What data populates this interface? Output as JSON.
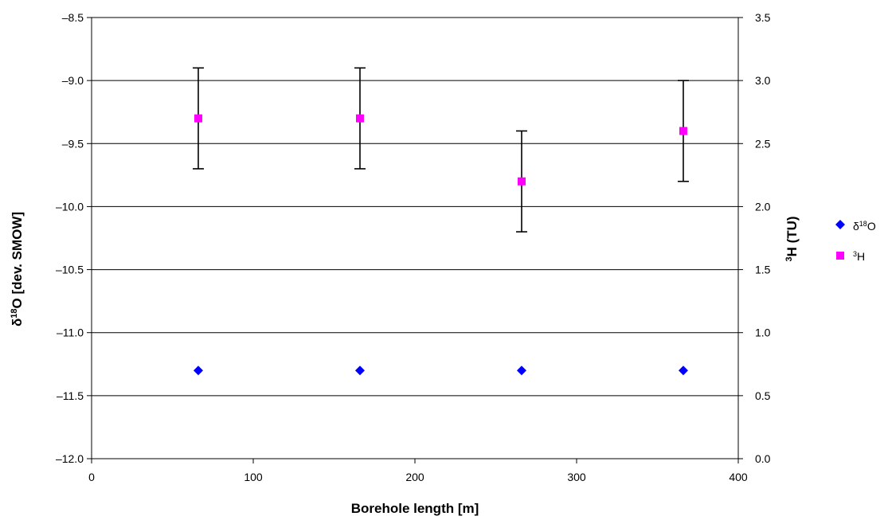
{
  "chart_data": {
    "type": "scatter",
    "xlabel": "Borehole length [m]",
    "ylabel_left": "δ18O [dev. SMOW]",
    "ylabel_right": "3H (TU)",
    "xlim": [
      0,
      400
    ],
    "xticks": [
      0,
      100,
      200,
      300,
      400
    ],
    "xtick_labels": [
      "0",
      "100",
      "200",
      "300",
      "400"
    ],
    "ylim_left": [
      -12.0,
      -8.5
    ],
    "yticks_left": [
      -12.0,
      -11.5,
      -11.0,
      -10.5,
      -10.0,
      -9.5,
      -9.0,
      -8.5
    ],
    "ytick_labels_left": [
      "–12.0",
      "–11.5",
      "–11.0",
      "–10.5",
      "–10.0",
      "–9.5",
      "–9.0",
      "–8.5"
    ],
    "ylim_right": [
      0.0,
      3.5
    ],
    "yticks_right": [
      0.0,
      0.5,
      1.0,
      1.5,
      2.0,
      2.5,
      3.0,
      3.5
    ],
    "ytick_labels_right": [
      "0.0",
      "0.5",
      "1.0",
      "1.5",
      "2.0",
      "2.5",
      "3.0",
      "3.5"
    ],
    "grid": "horizontal",
    "legend_position": "right",
    "series": [
      {
        "name": "δ18O",
        "axis": "left",
        "marker": "diamond",
        "color": "#0000ff",
        "x": [
          66,
          166,
          266,
          366
        ],
        "y": [
          -11.3,
          -11.3,
          -11.3,
          -11.3
        ]
      },
      {
        "name": "3H",
        "axis": "right",
        "marker": "square",
        "color": "#ff00ff",
        "x": [
          66,
          166,
          266,
          366
        ],
        "y": [
          2.7,
          2.7,
          2.2,
          2.6
        ],
        "error": [
          0.4,
          0.4,
          0.4,
          0.4
        ]
      }
    ]
  }
}
